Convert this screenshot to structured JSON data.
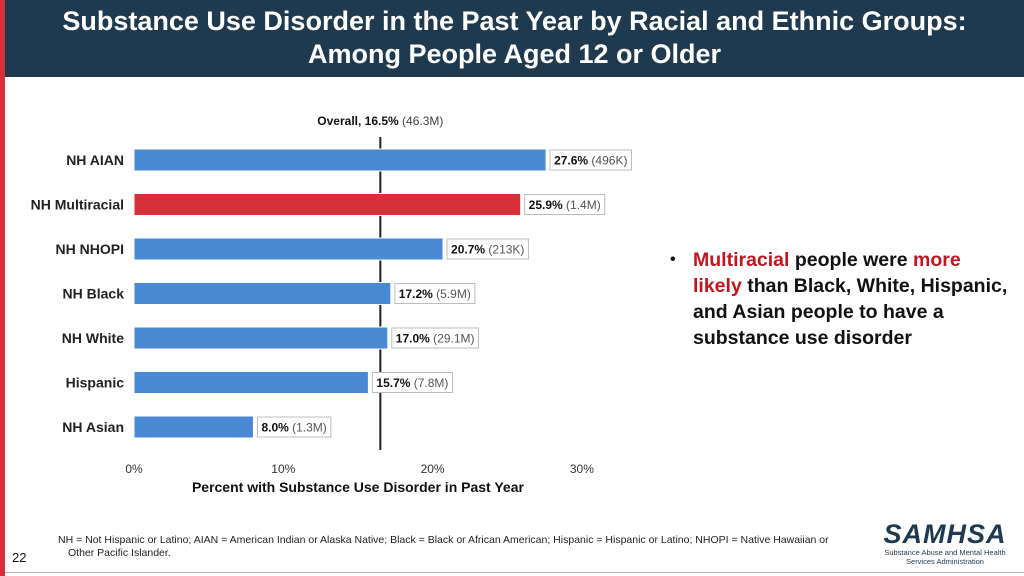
{
  "title": {
    "line1": "Substance Use Disorder in the Past Year by Racial and Ethnic Groups:",
    "line2": "Among People Aged 12 or Older"
  },
  "chart_data": {
    "type": "bar",
    "orientation": "horizontal",
    "categories": [
      "NH AIAN",
      "NH Multiracial",
      "NH NHOPI",
      "NH Black",
      "NH White",
      "Hispanic",
      "NH Asian"
    ],
    "values": [
      27.6,
      25.9,
      20.7,
      17.2,
      17.0,
      15.7,
      8.0
    ],
    "counts": [
      "(496K)",
      "(1.4M)",
      "(213K)",
      "(5.9M)",
      "(29.1M)",
      "(7.8M)",
      "(1.3M)"
    ],
    "highlight": "NH Multiracial",
    "bar_color": "#4a8ad4",
    "highlight_color": "#d7303a",
    "reference": {
      "label": "Overall, 16.5%",
      "count": "(46.3M)",
      "value": 16.5
    },
    "xlim": [
      0,
      30
    ],
    "xticks": [
      0,
      10,
      20,
      30
    ],
    "xtick_labels": [
      "0%",
      "10%",
      "20%",
      "30%"
    ],
    "xlabel": "Percent with Substance Use Disorder in Past Year",
    "grid": false
  },
  "bullet": {
    "part1": "Multiracial",
    "part2": " people were ",
    "part3": "more likely",
    "part4": " than Black, White, Hispanic, and Asian people to have a substance use disorder"
  },
  "footnote": {
    "line1": "NH = Not Hispanic or Latino; AIAN = American Indian or Alaska Native; Black = Black or African American; Hispanic = Hispanic or Latino; NHOPI = Native Hawaiian or",
    "line2": "Other Pacific Islander."
  },
  "page_number": "22",
  "logo": {
    "name": "SAMHSA",
    "line1": "Substance Abuse and Mental Health",
    "line2": "Services Administration"
  },
  "colors": {
    "header_bg": "#1f3a4f",
    "accent_red": "#d7303a",
    "highlight_text": "#c0161e"
  }
}
